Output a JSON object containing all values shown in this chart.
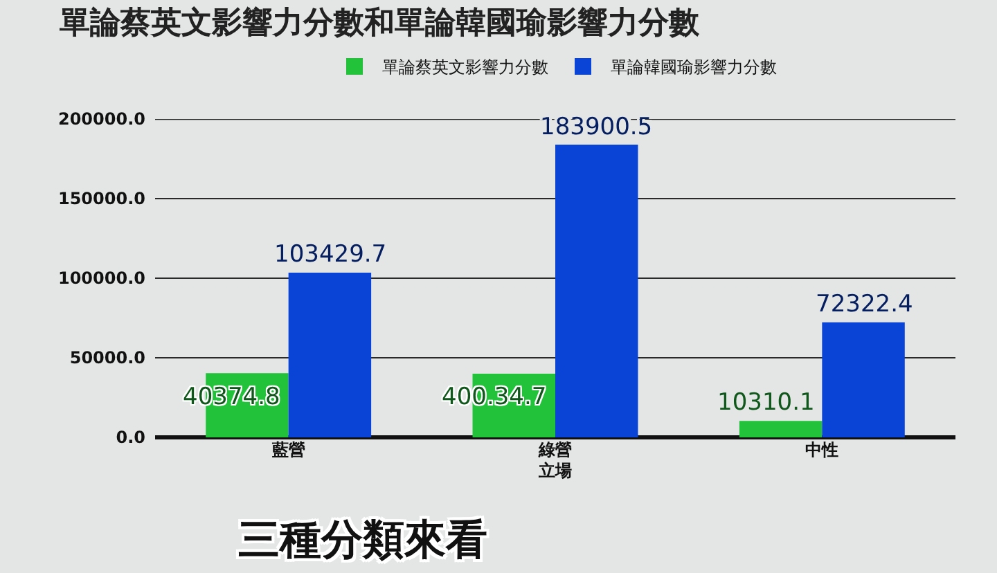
{
  "chart_data": {
    "type": "bar",
    "title": "單論蔡英文影響力分數和單論韓國瑜影響力分數",
    "xlabel": "立場",
    "categories": [
      "藍營",
      "綠營",
      "中性"
    ],
    "series": [
      {
        "name": "單論蔡英文影響力分數",
        "color": "#22c23a",
        "values": [
          40374.8,
          40034.7,
          10310.1
        ],
        "value_labels": [
          "40374.8",
          "400.34.7",
          "10310.1"
        ]
      },
      {
        "name": "單論韓國瑜影響力分數",
        "color": "#0a44d6",
        "values": [
          103429.7,
          183900.5,
          72322.4
        ],
        "value_labels": [
          "103429.7",
          "183900.5",
          "72322.4"
        ]
      }
    ],
    "ylim": [
      0,
      200000
    ],
    "yticks": [
      {
        "value": 0,
        "label": "0.0"
      },
      {
        "value": 50000,
        "label": "50000.0"
      },
      {
        "value": 100000,
        "label": "100000.0"
      },
      {
        "value": 150000,
        "label": "150000.0"
      },
      {
        "value": 200000,
        "label": "200000.0"
      }
    ],
    "grid": "y",
    "legend": "top",
    "annotations": [
      "三種分類來看"
    ]
  }
}
